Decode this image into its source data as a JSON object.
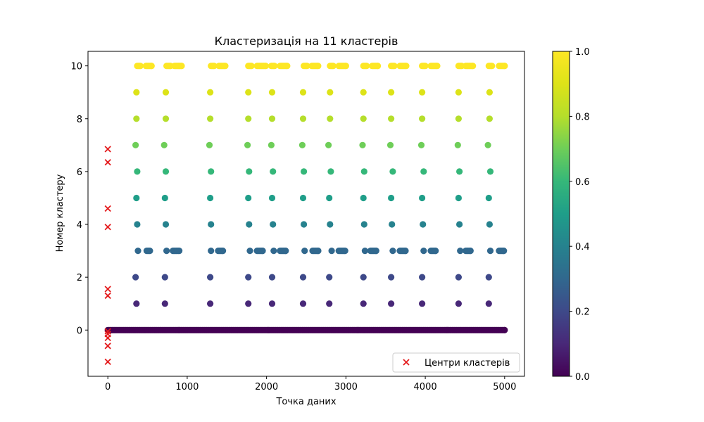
{
  "chart_data": {
    "type": "scatter",
    "title": "Кластеризація на 11 кластерів",
    "xlabel": "Точка даних",
    "ylabel": "Номер кластеру",
    "xlim": [
      -250,
      5250
    ],
    "ylim": [
      -1.75,
      10.55
    ],
    "xticks": [
      0,
      1000,
      2000,
      3000,
      4000,
      5000
    ],
    "yticks": [
      0,
      2,
      4,
      6,
      8,
      10
    ],
    "grid": false,
    "colormap": "viridis",
    "colorbar": {
      "min": 0.0,
      "max": 1.0,
      "ticks": [
        "0.0",
        "0.2",
        "0.4",
        "0.6",
        "0.8",
        "1.0"
      ]
    },
    "legend": {
      "position": "lower-right",
      "label": "Центри кластерів",
      "marker": "x",
      "color": "#e41a1c"
    },
    "series": [
      {
        "marker": "o",
        "colored_by": "cluster",
        "clusters": [
          {
            "y": 0,
            "x_ranges": [
              [
                0,
                5000
              ]
            ],
            "x": []
          },
          {
            "y": 1,
            "x_ranges": [],
            "x": [
              360,
              720,
              1290,
              1770,
              2070,
              2460,
              2790,
              3220,
              3570,
              3960,
              4420,
              4800
            ]
          },
          {
            "y": 2,
            "x_ranges": [],
            "x": [
              350,
              720,
              1290,
              1770,
              2070,
              2460,
              2790,
              3220,
              3570,
              3960,
              4420,
              4800
            ]
          },
          {
            "y": 3,
            "x_ranges": [
              [
                490,
                530
              ],
              [
                820,
                900
              ],
              [
                1390,
                1450
              ],
              [
                1880,
                1950
              ],
              [
                2170,
                2240
              ],
              [
                2580,
                2650
              ],
              [
                2910,
                2990
              ],
              [
                3310,
                3380
              ],
              [
                3680,
                3750
              ],
              [
                4070,
                4130
              ],
              [
                4510,
                4570
              ],
              [
                4930,
                4990
              ]
            ],
            "x": [
              380,
              740,
              1300,
              1790,
              2090,
              2480,
              2820,
              3240,
              3590,
              3980,
              4440,
              4820
            ]
          },
          {
            "y": 4,
            "x_ranges": [],
            "x": [
              370,
              730,
              1300,
              1780,
              2080,
              2470,
              2800,
              3230,
              3580,
              3970,
              4430,
              4810
            ]
          },
          {
            "y": 5,
            "x_ranges": [],
            "x": [
              360,
              720,
              1290,
              1770,
              2070,
              2460,
              2790,
              3220,
              3570,
              3960,
              4420,
              4800
            ]
          },
          {
            "y": 6,
            "x_ranges": [],
            "x": [
              370,
              730,
              1300,
              1780,
              2080,
              2470,
              2810,
              3230,
              3590,
              3980,
              4430,
              4820
            ]
          },
          {
            "y": 7,
            "x_ranges": [],
            "x": [
              350,
              710,
              1280,
              1760,
              2060,
              2450,
              2780,
              3210,
              3560,
              3950,
              4410,
              4790
            ]
          },
          {
            "y": 8,
            "x_ranges": [],
            "x": [
              360,
              730,
              1290,
              1770,
              2070,
              2460,
              2800,
              3220,
              3570,
              3960,
              4420,
              4810
            ]
          },
          {
            "y": 9,
            "x_ranges": [],
            "x": [
              360,
              730,
              1290,
              1770,
              2070,
              2460,
              2800,
              3220,
              3570,
              3960,
              4420,
              4810
            ]
          },
          {
            "y": 10,
            "x_ranges": [
              [
                370,
                410
              ],
              [
                480,
                550
              ],
              [
                740,
                790
              ],
              [
                840,
                930
              ],
              [
                1300,
                1340
              ],
              [
                1400,
                1480
              ],
              [
                1770,
                1810
              ],
              [
                1880,
                1990
              ],
              [
                2060,
                2100
              ],
              [
                2170,
                2260
              ],
              [
                2470,
                2510
              ],
              [
                2570,
                2650
              ],
              [
                2800,
                2840
              ],
              [
                2910,
                3000
              ],
              [
                3220,
                3260
              ],
              [
                3330,
                3400
              ],
              [
                3570,
                3610
              ],
              [
                3680,
                3760
              ],
              [
                3960,
                4000
              ],
              [
                4070,
                4150
              ],
              [
                4420,
                4460
              ],
              [
                4510,
                4600
              ],
              [
                4800,
                4840
              ],
              [
                4930,
                5000
              ]
            ],
            "x": []
          }
        ]
      },
      {
        "name": "Центри кластерів",
        "marker": "x",
        "color": "#e41a1c",
        "points": [
          {
            "x": 0,
            "y": 6.85
          },
          {
            "x": 0,
            "y": 6.35
          },
          {
            "x": 0,
            "y": 4.6
          },
          {
            "x": 0,
            "y": 3.9
          },
          {
            "x": 0,
            "y": 1.55
          },
          {
            "x": 0,
            "y": 1.3
          },
          {
            "x": 0,
            "y": -0.05
          },
          {
            "x": 0,
            "y": -0.15
          },
          {
            "x": 0,
            "y": -0.3
          },
          {
            "x": 0,
            "y": -0.6
          },
          {
            "x": 0,
            "y": -1.2
          }
        ]
      }
    ]
  }
}
